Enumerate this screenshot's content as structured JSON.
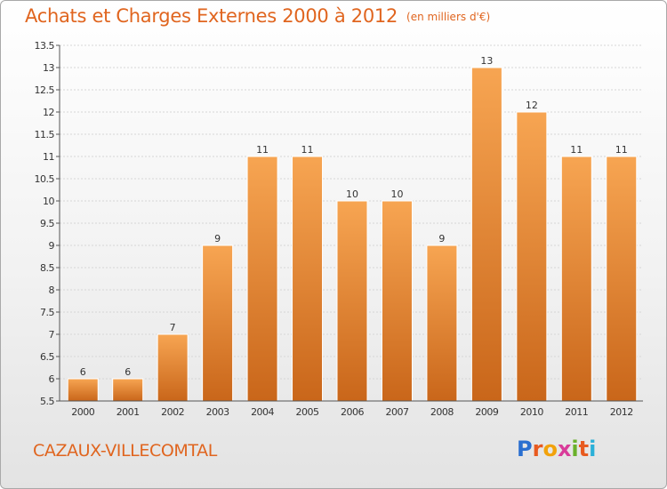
{
  "header": {
    "title": "Achats et Charges Externes 2000 à 2012",
    "unit": "(en milliers d'€)"
  },
  "footer": {
    "town": "CAZAUX-VILLECOMTAL",
    "logo_letters": [
      "P",
      "r",
      "o",
      "x",
      "i",
      "t",
      "i"
    ],
    "logo_colors": [
      "#2a6fd0",
      "#e85a1f",
      "#f2a20b",
      "#d93c9a",
      "#6ab02b",
      "#e85a1f",
      "#2ab0d8"
    ]
  },
  "chart_data": {
    "type": "bar",
    "categories": [
      "2000",
      "2001",
      "2002",
      "2003",
      "2004",
      "2005",
      "2006",
      "2007",
      "2008",
      "2009",
      "2010",
      "2011",
      "2012"
    ],
    "values": [
      6,
      6,
      7,
      9,
      11,
      11,
      10,
      10,
      9,
      13,
      12,
      11,
      11
    ],
    "data_labels": [
      "6",
      "6",
      "7",
      "9",
      "11",
      "11",
      "10",
      "10",
      "9",
      "13",
      "12",
      "11",
      "11"
    ],
    "ylim": [
      5.5,
      13.5
    ],
    "yticks": [
      "5.5",
      "6",
      "6.5",
      "7",
      "7.5",
      "8",
      "8.5",
      "9",
      "9.5",
      "10",
      "10.5",
      "11",
      "11.5",
      "12",
      "12.5",
      "13",
      "13.5"
    ],
    "grid": true,
    "bar_color": "#f0943a"
  }
}
